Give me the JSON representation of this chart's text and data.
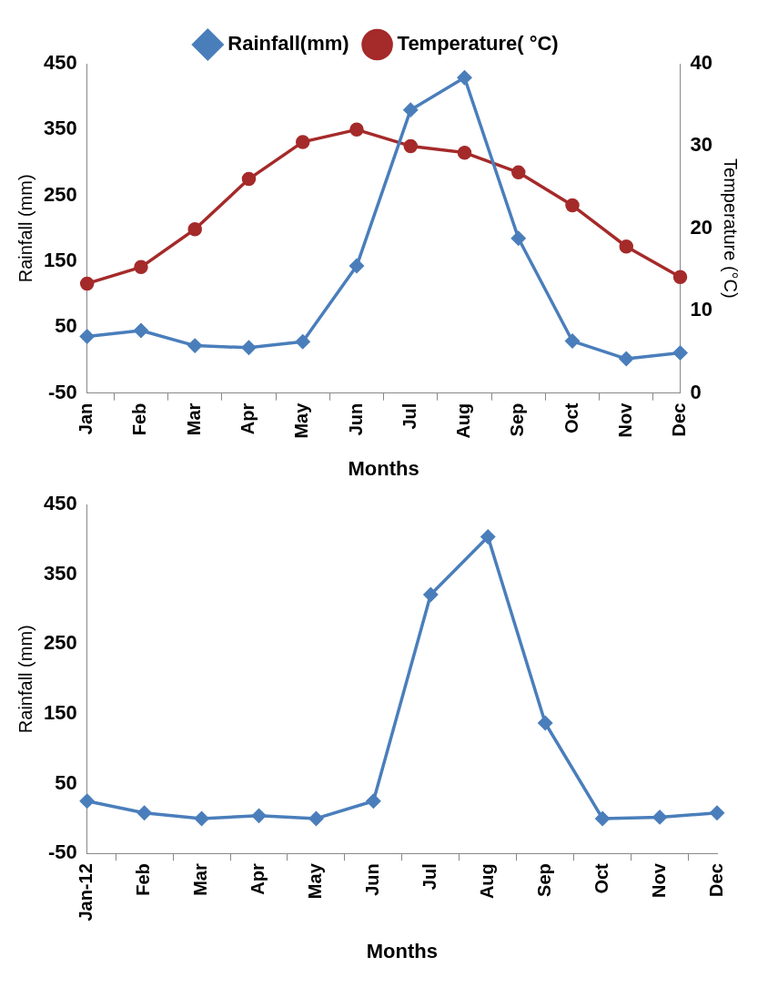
{
  "chart_data": [
    {
      "type": "line",
      "xlabel": "Months",
      "ylabel": "Rainfall (mm)",
      "y2label": "Temperature (°C)",
      "categories": [
        "Jan",
        "Feb",
        "Mar",
        "Apr",
        "May",
        "Jun",
        "Jul",
        "Aug",
        "Sep",
        "Oct",
        "Nov",
        "Dec"
      ],
      "series": [
        {
          "name": "Rainfall(mm)",
          "color": "#4a7ebb",
          "marker": "diamond",
          "values": [
            36,
            45,
            22,
            19,
            28,
            143,
            380,
            429,
            185,
            29,
            2,
            11
          ]
        },
        {
          "name": "Temperature( °C)",
          "color": "#a52a2a",
          "marker": "circle",
          "axis": "y2",
          "values": [
            13.3,
            15.3,
            19.9,
            26.0,
            30.5,
            32.0,
            30.0,
            29.2,
            26.8,
            22.8,
            17.8,
            14.1
          ]
        }
      ],
      "ylim": [
        -50,
        450
      ],
      "yticks": [
        -50,
        50,
        150,
        250,
        350,
        450
      ],
      "y2lim": [
        0,
        40
      ],
      "y2ticks": [
        0,
        10,
        20,
        30,
        40
      ],
      "grid": false,
      "legend": "top",
      "line_style": "solid"
    },
    {
      "type": "line",
      "xlabel": "Months",
      "ylabel": "Rainfall (mm)",
      "categories": [
        "Jan-12",
        "Feb",
        "Mar",
        "Apr",
        "May",
        "Jun",
        "Jul",
        "Aug",
        "Sep",
        "Oct",
        "Nov",
        "Dec"
      ],
      "series": [
        {
          "color": "#4a7ebb",
          "marker": "diamond",
          "values": [
            25,
            8,
            0,
            4,
            0,
            25,
            321,
            404,
            137,
            0,
            2,
            8
          ]
        }
      ],
      "ylim": [
        -50,
        450
      ],
      "yticks": [
        -50,
        50,
        150,
        250,
        350,
        450
      ],
      "grid": false,
      "legend": false,
      "line_style": "solid"
    }
  ]
}
